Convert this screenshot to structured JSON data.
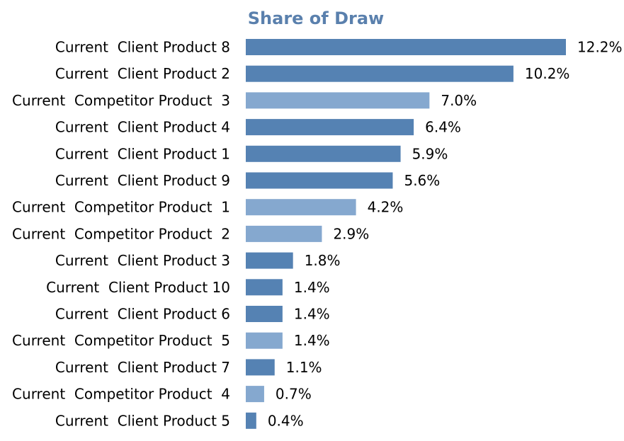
{
  "chart_data": {
    "type": "bar",
    "orientation": "horizontal",
    "title": "Share of Draw",
    "xlabel": "",
    "ylabel": "",
    "grid": false,
    "value_format": "percent_1dp",
    "categories": [
      "Current  Client Product 8",
      "Current  Client Product 2",
      "Current  Competitor Product  3",
      "Current  Client Product 4",
      "Current  Client Product 1",
      "Current  Client Product 9",
      "Current  Competitor Product  1",
      "Current  Competitor Product  2",
      "Current  Client Product 3",
      "Current  Client Product 10",
      "Current  Client Product 6",
      "Current  Competitor Product  5",
      "Current  Client Product 7",
      "Current  Competitor Product  4",
      "Current  Client Product 5"
    ],
    "values": [
      12.2,
      10.2,
      7.0,
      6.4,
      5.9,
      5.6,
      4.2,
      2.9,
      1.8,
      1.4,
      1.4,
      1.4,
      1.1,
      0.7,
      0.4
    ],
    "labels": [
      "12.2%",
      "10.2%",
      "7.0%",
      "6.4%",
      "5.9%",
      "5.6%",
      "4.2%",
      "2.9%",
      "1.8%",
      "1.4%",
      "1.4%",
      "1.4%",
      "1.1%",
      "0.7%",
      "0.4%"
    ],
    "groups": [
      "client",
      "client",
      "competitor",
      "client",
      "client",
      "client",
      "competitor",
      "competitor",
      "client",
      "client",
      "client",
      "competitor",
      "client",
      "competitor",
      "client"
    ],
    "colors": {
      "client": "#5582b3",
      "competitor": "#85a8cf",
      "title": "#5a80ad"
    },
    "xlim": [
      0,
      12.2
    ]
  }
}
